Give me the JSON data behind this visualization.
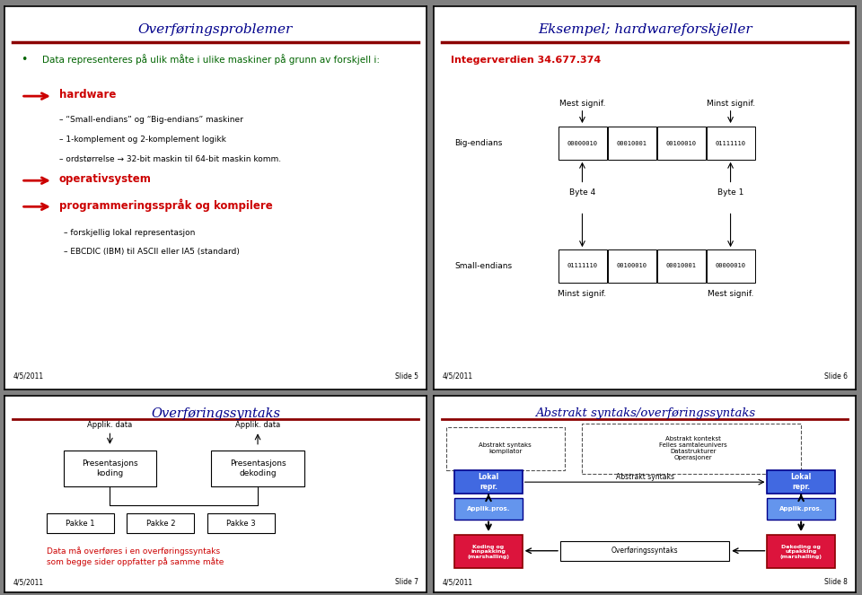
{
  "slide1": {
    "title": "Overføringsproblemer",
    "title_color": "#00008B",
    "line_color": "#8B0000",
    "bullet_color": "#006400",
    "arrow_color": "#CC0000",
    "footer_left": "4/5/2011",
    "footer_right": "Slide 5",
    "bullet1": "Data representeres på ulik måte i ulike maskiner på grunn av forskjell i:",
    "arrow1": "hardware",
    "sub1a": "– “Small-endians” og “Big-endians” maskiner",
    "sub1b": "– 1-komplement og 2-komplement logikk",
    "sub1c": "– ordstørrelse → 32-bit maskin til 64-bit maskin komm.",
    "arrow2": "operativsystem",
    "arrow3": "programmeringsspråk og kompilere",
    "sub3a": "– forskjellig lokal representasjon",
    "sub3b": "– EBCDIC (IBM) til ASCII eller IA5 (standard)"
  },
  "slide2": {
    "title": "Eksempel; hardwareforskjeller",
    "title_color": "#00008B",
    "line_color": "#8B0000",
    "footer_left": "4/5/2011",
    "footer_right": "Slide 6",
    "integer_label": "Integerverdien 34.677.374",
    "integer_color": "#CC0000",
    "big_endians_label": "Big-endians",
    "big_bytes": [
      "00000010",
      "00010001",
      "00100010",
      "01111110"
    ],
    "small_endians_label": "Small-endians",
    "small_bytes": [
      "01111110",
      "00100010",
      "00010001",
      "00000010"
    ],
    "mest_signif": "Mest signif.",
    "minst_signif": "Minst signif.",
    "byte4": "Byte 4",
    "byte1": "Byte 1"
  },
  "slide3": {
    "title": "Overføringssyntaks",
    "title_color": "#00008B",
    "line_color": "#8B0000",
    "footer_left": "4/5/2011",
    "footer_right": "Slide 7",
    "applik_data1": "Applik. data",
    "applik_data2": "Applik. data",
    "box1": "Presentasjons\nkoding",
    "box2": "Presentasjons\ndekoding",
    "pakke1": "Pakke 1",
    "pakke2": "Pakke 2",
    "pakke3": "Pakke 3",
    "note": "Data må overføres i en overføringssyntaks\nsom begge sider oppfatter på samme måte",
    "note_color": "#CC0000"
  },
  "slide4": {
    "title": "Abstrakt syntaks/overføringssyntaks",
    "title_color": "#00008B",
    "line_color": "#8B0000",
    "footer_left": "4/5/2011",
    "footer_right": "Slide 8",
    "box_kompilator": "Abstrakt syntaks\nkompilator",
    "box_kontekst": "Abstrakt kontekst\nFelles samtaleunivers\nDatastrukturer\nOperasjoner",
    "lokal_repr": "Lokal\nrepr.",
    "applik_pros": "Applik.pros.",
    "abs_syntaks": "Abstrakt syntaks",
    "koding_box": "Koding og\ninnpakking\n(marshalling)",
    "overf_box": "Overføringssyntaks",
    "dekoding_box": "Dekoding og\nutpakking\n(marshalling)",
    "lokal_color": "#4169E1",
    "applik_color": "#6495ED",
    "koding_color": "#DC143C",
    "dekoding_color": "#DC143C"
  },
  "bg_color": "#FFFFFF",
  "outer_bg": "#808080"
}
